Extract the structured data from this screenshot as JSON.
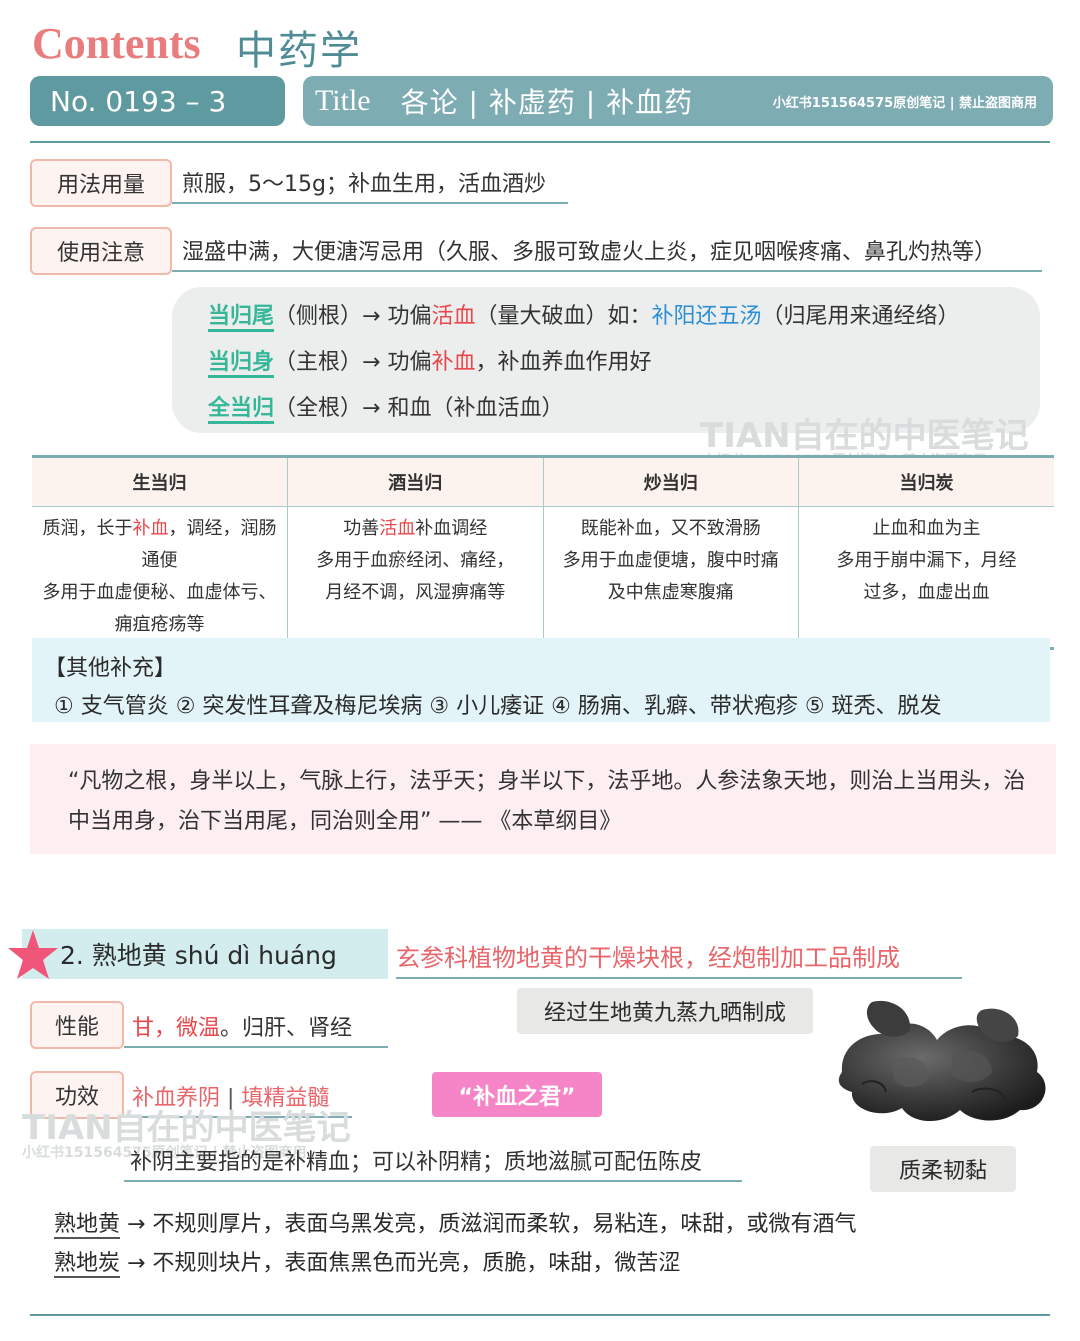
{
  "header": {
    "contents": "Contents",
    "subject": "中药学",
    "number": "No. 0193 – 3",
    "title_label": "Title",
    "title_text": "各论 | 补虚药 | 补血药",
    "note": "小红书151564575原创笔记 | 禁止盗图商用"
  },
  "usage": {
    "label": "用法用量",
    "text": "煎服，5～15g；补血生用，活血酒炒"
  },
  "caution": {
    "label": "使用注意",
    "text": "湿盛中满，大便溏泻忌用（久服、多服可致虚火上炎，症见咽喉疼痛、鼻孔灼热等）"
  },
  "parts": [
    {
      "name": "当归尾",
      "root": "（侧根）",
      "arrow": "→ 功偏",
      "focus": "活血",
      "rest": "（量大破血）如：",
      "formula": "补阳还五汤",
      "extra": "（归尾用来通经络）"
    },
    {
      "name": "当归身",
      "root": "（主根）",
      "arrow": "→ 功偏",
      "focus": "补血",
      "rest": "，补血养血作用好"
    },
    {
      "name": "全当归",
      "root": "（全根）",
      "arrow": "→ 和血（补血活血）"
    }
  ],
  "watermark": {
    "main": "TIAN自在的中医笔记",
    "sub": "小红书151564575原创笔记 | 禁止盗图商用"
  },
  "table": {
    "headers": [
      "生当归",
      "酒当归",
      "炒当归",
      "当归炭"
    ],
    "col1": {
      "l1a": "质润，长于",
      "l1b": "补血",
      "l1c": "，调经，润肠通便",
      "l2": "多用于血虚便秘、血虚体亏、",
      "l3": "痈疽疮疡等"
    },
    "col2": {
      "l1a": "功善",
      "l1b": "活血",
      "l1c": "补血调经",
      "l2": "多用于血瘀经闭、痛经，",
      "l3": "月经不调，风湿痹痛等"
    },
    "col3": {
      "l1": "既能补血，又不致滑肠",
      "l2": "多用于血虚便塘，腹中时痛",
      "l3": "及中焦虚寒腹痛"
    },
    "col4": {
      "l1": "止血和血为主",
      "l2": "多用于崩中漏下，月经",
      "l3": "过多，血虚出血"
    }
  },
  "supplement": {
    "title": "【其他补充】",
    "items": "① 支气管炎 ② 突发性耳聋及梅尼埃病 ③ 小儿痿证 ④ 肠痈、乳癖、带状疱疹 ⑤ 斑秃、脱发"
  },
  "quote": "“凡物之根，身半以上，气脉上行，法乎天；身半以下，法乎地。人参法象天地，则治上当用头，治中当用身，治下当用尾，同治则全用” —— 《本草纲目》",
  "section2": {
    "title": "2.  熟地黄  shú  dì  huáng",
    "desc": "玄参科植物地黄的干燥块根，经炮制加工品制成",
    "process": "经过生地黄九蒸九晒制成",
    "nature_label": "性能",
    "nature_red": "甘，微温",
    "nature_rest": "。归肝、肾经",
    "effect_label": "功效",
    "effect_1": "补血养阴",
    "effect_sep": " | ",
    "effect_2": "填精益髓",
    "nickname": "“补血之君”",
    "effect_note": "补阴主要指的是补精血；可以补阴精；质地滋腻可配伍陈皮",
    "texture": "质柔韧黏",
    "items": [
      {
        "name": "熟地黄",
        "desc": " → 不规则厚片，表面乌黑发亮，质滋润而柔软，易粘连，味甜，或微有酒气"
      },
      {
        "name": "熟地炭",
        "desc": " → 不规则块片，表面焦黑色而光亮，质脆，味甜，微苦涩"
      }
    ]
  },
  "colors": {
    "teal": "#5e9aa0",
    "teal_light": "#7eacb3",
    "pink_title": "#e97c7c",
    "green": "#36b79a",
    "red": "#e8474b",
    "blue": "#2b8fd6",
    "magenta": "#f585c7"
  }
}
